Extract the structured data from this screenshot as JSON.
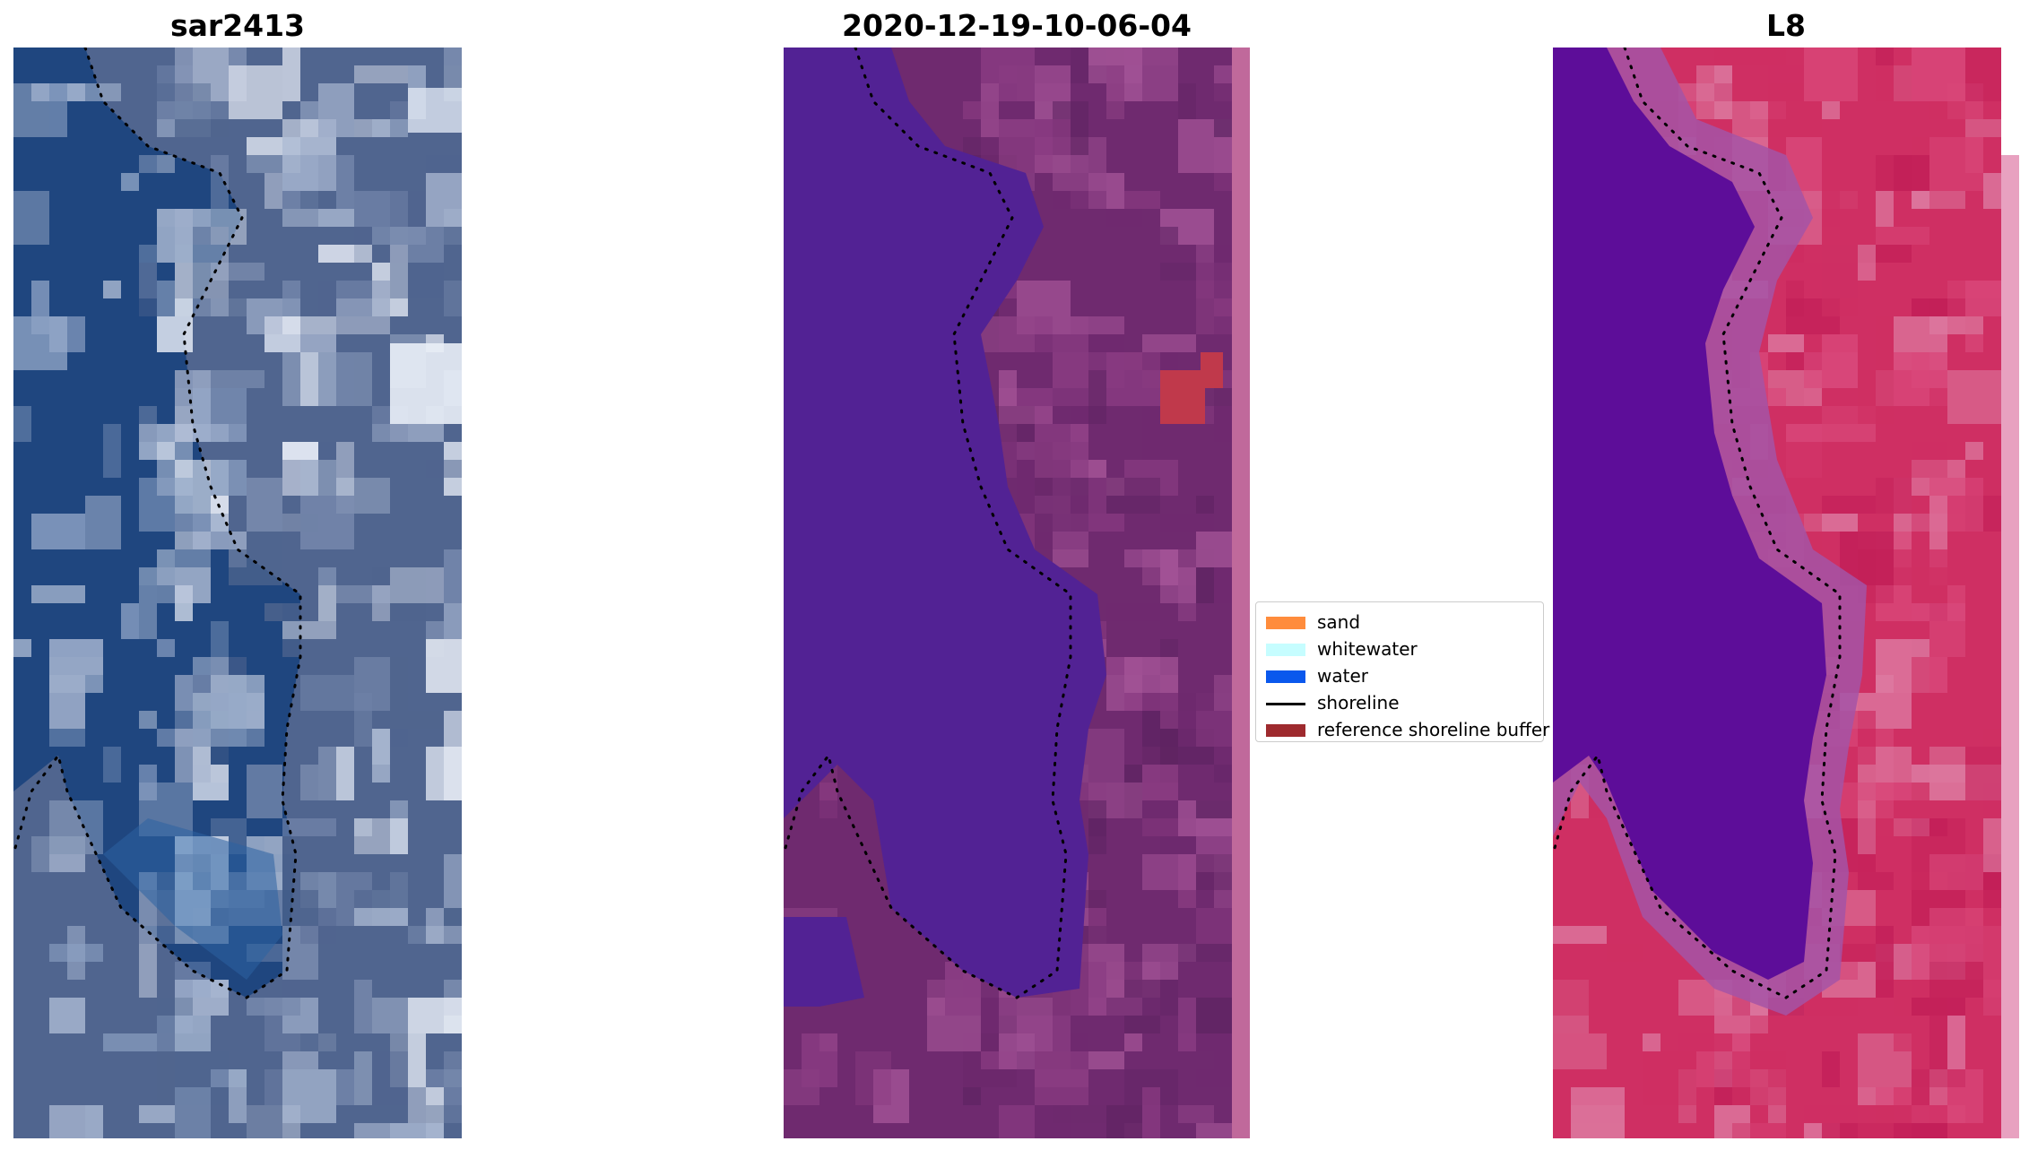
{
  "panels": [
    {
      "id": "sar",
      "title": "sar2413",
      "palette": {
        "water": "#1f467f",
        "land": "#50658f",
        "light": "#a7b6d0",
        "bright": "#e9eef7"
      }
    },
    {
      "id": "classified",
      "title": "2020-12-19-10-06-04",
      "palette": {
        "water": "#522294",
        "land": "#6f2a6f",
        "light": "#a45497",
        "strip": "#c0699b",
        "patch": "#c0394b"
      }
    },
    {
      "id": "l8",
      "title": "L8",
      "palette": {
        "water": "#5d0d99",
        "transition": "#a453a6",
        "land": "#cf2f63",
        "bright": "#dd7aa1",
        "strip": "#e8a1c0"
      }
    }
  ],
  "legend": {
    "items": [
      {
        "label": "sand",
        "color": "#ff8c3c",
        "kind": "patch"
      },
      {
        "label": "whitewater",
        "color": "#c6fdff",
        "kind": "patch"
      },
      {
        "label": "water",
        "color": "#0a58ed",
        "kind": "patch"
      },
      {
        "label": "shoreline",
        "color": "#000000",
        "kind": "line"
      },
      {
        "label": "reference shoreline buffer",
        "color": "#9e2a2e",
        "kind": "patch"
      }
    ]
  },
  "shoreline_style": {
    "color": "#000000",
    "style": "dotted"
  }
}
